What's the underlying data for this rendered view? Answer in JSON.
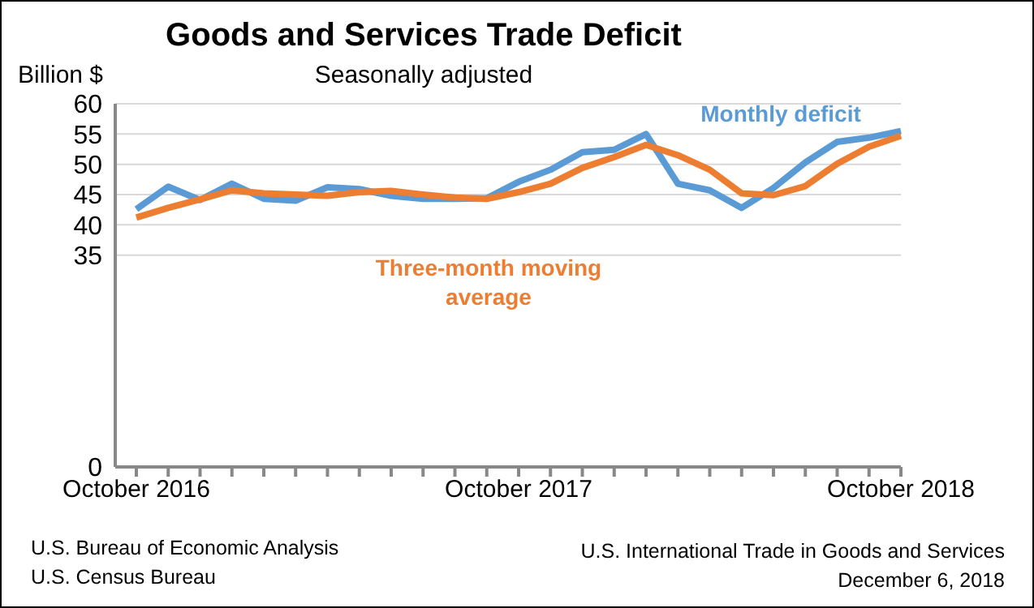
{
  "chart_data": {
    "type": "line",
    "title": "Goods and Services Trade Deficit",
    "subtitle": "Seasonally adjusted",
    "ylabel": "Billion $",
    "categories": [
      "October 2016",
      null,
      null,
      null,
      null,
      null,
      null,
      null,
      null,
      null,
      null,
      null,
      "October 2017",
      null,
      null,
      null,
      null,
      null,
      null,
      null,
      null,
      null,
      null,
      null,
      "October 2018"
    ],
    "series": [
      {
        "name": "Monthly deficit",
        "color": "#5b9bd5",
        "values": [
          42.6,
          46.3,
          44.1,
          46.8,
          44.3,
          44.0,
          46.2,
          45.9,
          44.8,
          44.3,
          44.3,
          44.4,
          47.1,
          49.1,
          52.0,
          52.4,
          55.0,
          46.8,
          45.7,
          42.8,
          46.1,
          50.3,
          53.7,
          54.4,
          55.5
        ]
      },
      {
        "name": "Three-month moving average",
        "color": "#ed7d31",
        "values": [
          41.2,
          42.8,
          44.2,
          45.7,
          45.2,
          45.0,
          44.8,
          45.4,
          45.6,
          45.0,
          44.5,
          44.3,
          45.4,
          46.8,
          49.4,
          51.2,
          53.2,
          51.5,
          49.1,
          45.2,
          44.9,
          46.4,
          50.1,
          52.9,
          54.7
        ]
      }
    ],
    "ylim": [
      0,
      60
    ],
    "yticks": [
      0,
      35,
      40,
      45,
      50,
      55,
      60
    ],
    "grid": "y",
    "legend": false,
    "marker": "none",
    "line_style": "solid",
    "annotations": [
      "U.S. Bureau of Economic Analysis",
      "U.S. Census Bureau",
      "U.S. International Trade in Goods and Services",
      "December 6, 2018"
    ]
  }
}
